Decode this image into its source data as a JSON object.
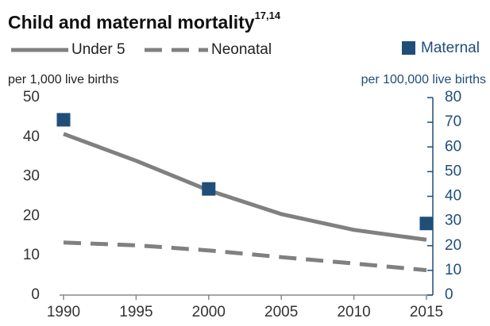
{
  "chart_data": {
    "type": "line",
    "title": "Child and maternal mortality",
    "title_superscript": "17,14",
    "y_label": "per 1,000 live births",
    "y2_label": "per 100,000 live births",
    "x": [
      1990,
      1995,
      2000,
      2005,
      2010,
      2015
    ],
    "series": [
      {
        "name": "Under 5",
        "color": "#808080",
        "style": "solid",
        "values": [
          40.8,
          34.0,
          26.5,
          20.5,
          16.5,
          14.0
        ]
      },
      {
        "name": "Neonatal",
        "color": "#808080",
        "style": "dashed",
        "values": [
          13.3,
          12.6,
          11.3,
          9.6,
          8.0,
          6.3
        ]
      },
      {
        "name": "Maternal",
        "color": "#1f4e79",
        "style": "marker",
        "axis": "y2",
        "x": [
          1990,
          2000,
          2015
        ],
        "values": [
          71,
          43,
          29
        ]
      }
    ],
    "xlim": [
      1990,
      2015
    ],
    "xticks": [
      1990,
      1995,
      2000,
      2005,
      2010,
      2015
    ],
    "ylim": [
      0,
      50
    ],
    "yticks": [
      0,
      10,
      20,
      30,
      40,
      50
    ],
    "y2lim": [
      0,
      80
    ],
    "y2ticks": [
      0,
      10,
      20,
      30,
      40,
      50,
      60,
      70,
      80
    ],
    "grid": false
  }
}
